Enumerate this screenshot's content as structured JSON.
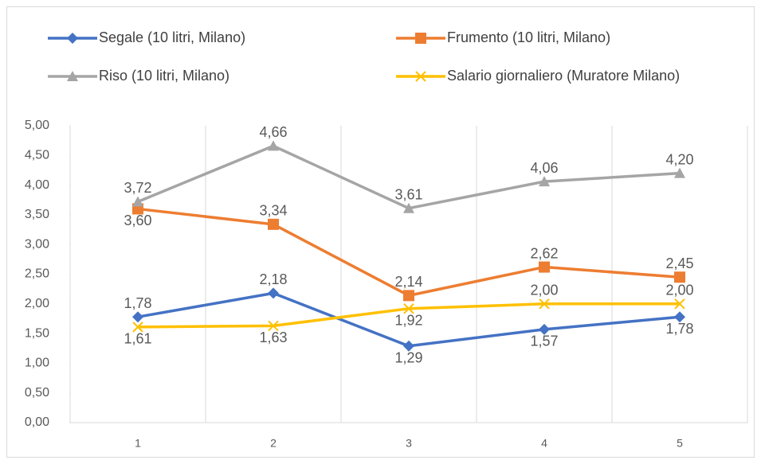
{
  "chart_data": {
    "type": "line",
    "categories": [
      "1",
      "2",
      "3",
      "4",
      "5"
    ],
    "series": [
      {
        "name": "Segale (10 litri, Milano)",
        "color": "#4472c4",
        "marker": "diamond",
        "values": [
          1.78,
          2.18,
          1.29,
          1.57,
          1.78
        ],
        "value_labels": [
          "1,78",
          "2,18",
          "1,29",
          "1,57",
          "1,78"
        ]
      },
      {
        "name": "Frumento (10 litri, Milano)",
        "color": "#ed7d31",
        "marker": "square",
        "values": [
          3.6,
          3.34,
          2.14,
          2.62,
          2.45
        ],
        "value_labels": [
          "3,60",
          "3,34",
          "2,14",
          "2,62",
          "2,45"
        ]
      },
      {
        "name": "Riso (10 litri, Milano)",
        "color": "#a5a5a5",
        "marker": "triangle",
        "values": [
          3.72,
          4.66,
          3.61,
          4.06,
          4.2
        ],
        "value_labels": [
          "3,72",
          "4,66",
          "3,61",
          "4,06",
          "4,20"
        ]
      },
      {
        "name": "Salario giornaliero (Muratore Milano)",
        "color": "#ffc000",
        "marker": "x",
        "values": [
          1.61,
          1.63,
          1.92,
          2.0,
          2.0
        ],
        "value_labels": [
          "1,61",
          "1,63",
          "1,92",
          "2,00",
          "2,00"
        ]
      }
    ],
    "ylim": [
      0,
      5
    ],
    "yticks": [
      {
        "value": 0,
        "label": "0,00"
      },
      {
        "value": 0.5,
        "label": "0,50"
      },
      {
        "value": 1,
        "label": "1,00"
      },
      {
        "value": 1.5,
        "label": "1,50"
      },
      {
        "value": 2,
        "label": "2,00"
      },
      {
        "value": 2.5,
        "label": "2,50"
      },
      {
        "value": 3,
        "label": "3,00"
      },
      {
        "value": 3.5,
        "label": "3,50"
      },
      {
        "value": 4,
        "label": "4,00"
      },
      {
        "value": 4.5,
        "label": "4,50"
      },
      {
        "value": 5,
        "label": "5,00"
      }
    ],
    "legend": "top"
  }
}
